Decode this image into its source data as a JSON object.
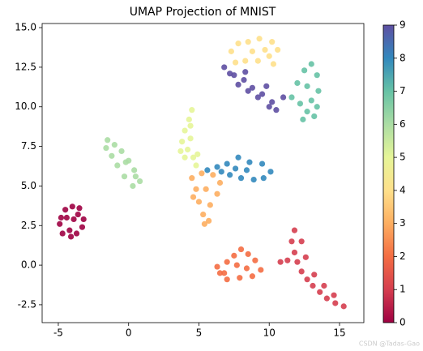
{
  "chart_data": {
    "type": "scatter",
    "title": "UMAP Projection of MNIST",
    "xlim": [
      -6.15,
      16.73
    ],
    "xticks": [
      -5,
      0,
      5,
      10,
      15
    ],
    "ylim": [
      -3.63,
      15.26
    ],
    "yticks": [
      -2.5,
      {
        "value": 0,
        "label": "0.0"
      },
      2.5,
      {
        "value": 5,
        "label": "5.0"
      },
      7.5,
      {
        "value": 10,
        "label": "10.0"
      },
      12.5,
      {
        "value": 15,
        "label": "15.0"
      }
    ],
    "colorbar": {
      "clim": [
        0,
        9
      ],
      "ticks": [
        0,
        1,
        2,
        3,
        4,
        5,
        6,
        7,
        8,
        9
      ],
      "colors": [
        "#9e0142",
        "#d53e4f",
        "#f46d43",
        "#fdae61",
        "#fee08b",
        "#e6f598",
        "#abdda4",
        "#66c2a5",
        "#3288bd",
        "#5e4fa2"
      ]
    },
    "series": [
      {
        "c": 0,
        "x": [
          -4.9,
          -4.5,
          -4.0,
          -3.5,
          -3.2,
          -4.7,
          -4.2,
          -3.7,
          -3.3,
          -4.4,
          -3.9,
          -3.6,
          -4.8,
          -4.1
        ],
        "y": [
          2.6,
          3.5,
          3.7,
          3.6,
          2.9,
          2.0,
          2.2,
          2.0,
          2.4,
          3.0,
          2.9,
          3.2,
          3.0,
          1.8
        ]
      },
      {
        "c": 1,
        "x": [
          11.8,
          11.6,
          11.8,
          12.0,
          12.3,
          12.7,
          13.1,
          13.6,
          14.1,
          14.7,
          15.3,
          12.3,
          12.6,
          13.2,
          13.9,
          14.6,
          11.3,
          10.8
        ],
        "y": [
          2.2,
          1.5,
          0.8,
          0.2,
          -0.4,
          -0.9,
          -1.3,
          -1.7,
          -2.1,
          -2.4,
          -2.6,
          1.5,
          0.5,
          -0.6,
          -1.3,
          -1.9,
          0.3,
          0.2
        ]
      },
      {
        "c": 2,
        "x": [
          6.5,
          7.0,
          7.5,
          8.0,
          8.5,
          9.0,
          9.4,
          8.8,
          7.9,
          7.0,
          6.3,
          7.7,
          8.4,
          6.8
        ],
        "y": [
          -0.5,
          0.2,
          0.6,
          1.0,
          0.7,
          0.3,
          -0.3,
          -0.7,
          -0.8,
          -0.9,
          -0.1,
          0.0,
          -0.2,
          -0.5
        ]
      },
      {
        "c": 3,
        "x": [
          4.5,
          5.2,
          6.0,
          6.5,
          4.8,
          5.5,
          6.3,
          5.0,
          5.8,
          5.3,
          5.7,
          5.4,
          4.6
        ],
        "y": [
          5.5,
          5.8,
          5.7,
          5.2,
          4.8,
          4.8,
          4.5,
          4.0,
          3.8,
          3.2,
          2.8,
          2.6,
          4.3
        ]
      },
      {
        "c": 4,
        "x": [
          7.3,
          7.8,
          8.5,
          9.3,
          10.2,
          10.6,
          10.0,
          9.2,
          8.3,
          7.6,
          8.8,
          9.7,
          10.3
        ],
        "y": [
          13.5,
          14.0,
          14.1,
          14.3,
          14.1,
          13.6,
          13.2,
          12.9,
          12.9,
          12.8,
          13.5,
          13.6,
          12.7
        ]
      },
      {
        "c": 5,
        "x": [
          4.5,
          4.3,
          4.0,
          3.8,
          4.2,
          4.6,
          4.8,
          4.0,
          3.7,
          4.4,
          4.4,
          4.9
        ],
        "y": [
          9.8,
          9.2,
          8.5,
          7.8,
          7.3,
          6.8,
          6.3,
          6.8,
          7.2,
          8.0,
          8.8,
          7.0
        ]
      },
      {
        "c": 6,
        "x": [
          -1.5,
          -1.0,
          -0.5,
          0.0,
          0.4,
          0.8,
          0.3,
          -0.3,
          -0.8,
          -1.2,
          -0.2,
          0.5,
          -1.6
        ],
        "y": [
          7.9,
          7.6,
          7.2,
          6.6,
          6.0,
          5.3,
          5.0,
          5.6,
          6.3,
          6.9,
          6.5,
          5.6,
          7.4
        ]
      },
      {
        "c": 7,
        "x": [
          11.6,
          12.0,
          12.5,
          13.0,
          13.4,
          13.5,
          13.4,
          13.2,
          12.7,
          12.2,
          12.7,
          13.0,
          12.4
        ],
        "y": [
          10.6,
          11.5,
          12.3,
          12.7,
          12.0,
          11.0,
          10.0,
          9.4,
          9.7,
          10.2,
          11.3,
          10.4,
          9.2
        ]
      },
      {
        "c": 8,
        "x": [
          5.6,
          6.3,
          7.0,
          7.8,
          8.6,
          9.5,
          10.1,
          9.6,
          8.9,
          8.0,
          7.2,
          6.6,
          8.4,
          7.6
        ],
        "y": [
          6.0,
          6.2,
          6.4,
          6.8,
          6.5,
          6.4,
          5.9,
          5.5,
          5.4,
          5.5,
          5.7,
          5.9,
          6.0,
          6.1
        ]
      },
      {
        "c": 9,
        "x": [
          6.8,
          7.5,
          8.2,
          8.8,
          9.5,
          10.2,
          10.5,
          10.0,
          9.2,
          8.5,
          7.8,
          7.2,
          9.8,
          11.0,
          8.3
        ],
        "y": [
          12.5,
          12.0,
          11.7,
          11.2,
          10.8,
          10.3,
          9.8,
          10.0,
          10.6,
          11.0,
          11.4,
          12.1,
          11.3,
          10.6,
          12.2
        ]
      }
    ],
    "watermark": "CSDN @Tadas-Gao"
  }
}
